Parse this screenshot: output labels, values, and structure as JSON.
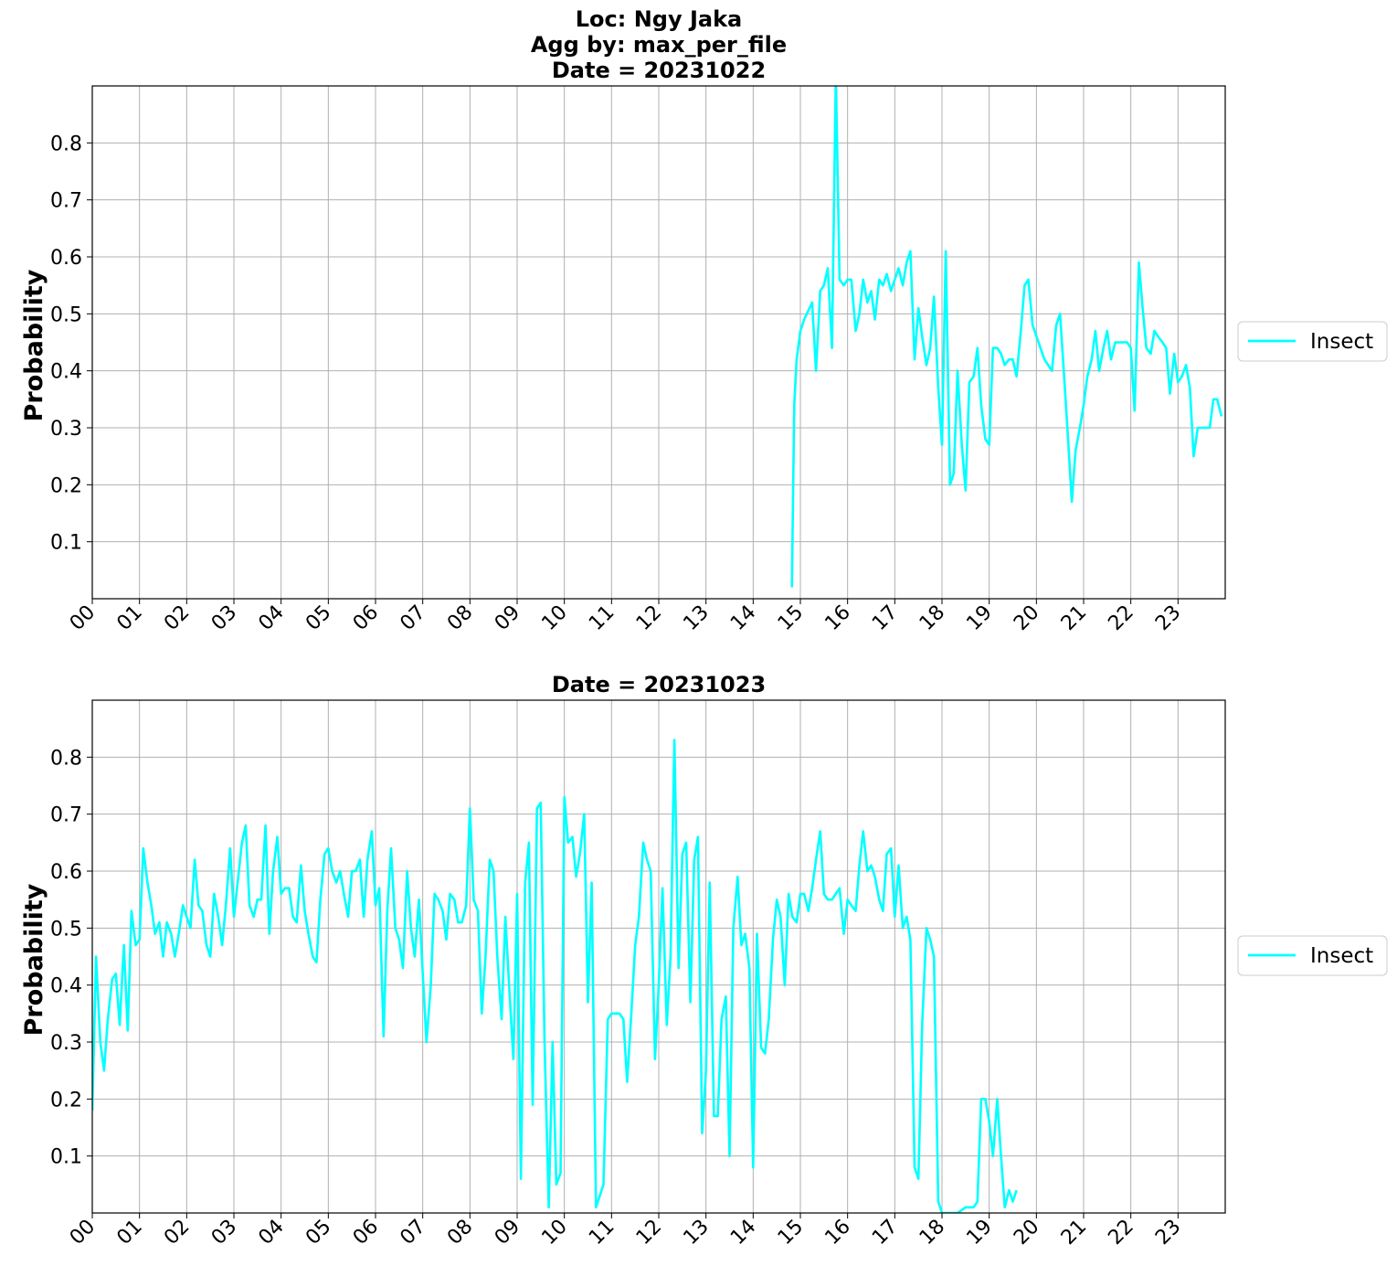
{
  "chart_data": [
    {
      "type": "line",
      "title_lines": [
        "Loc: Ngy Jaka",
        "Agg by: max_per_file",
        "Date = 20231022"
      ],
      "xlabel": "",
      "ylabel": "Probability",
      "x_ticks": [
        "00",
        "01",
        "02",
        "03",
        "04",
        "05",
        "06",
        "07",
        "08",
        "09",
        "10",
        "11",
        "12",
        "13",
        "14",
        "15",
        "16",
        "17",
        "18",
        "19",
        "20",
        "21",
        "22",
        "23"
      ],
      "y_ticks": [
        "0.1",
        "0.2",
        "0.3",
        "0.4",
        "0.5",
        "0.6",
        "0.7",
        "0.8"
      ],
      "xlim": [
        0,
        24
      ],
      "ylim": [
        0,
        0.9
      ],
      "grid": true,
      "legend_position": "right",
      "color": "#00ffff",
      "series": [
        {
          "name": "Insect",
          "x": [
            14.82,
            14.87,
            14.92,
            15.0,
            15.08,
            15.25,
            15.33,
            15.42,
            15.5,
            15.58,
            15.67,
            15.75,
            15.83,
            15.92,
            16.0,
            16.08,
            16.17,
            16.25,
            16.33,
            16.42,
            16.5,
            16.58,
            16.67,
            16.75,
            16.83,
            16.92,
            17.0,
            17.08,
            17.17,
            17.25,
            17.33,
            17.42,
            17.5,
            17.58,
            17.67,
            17.75,
            17.83,
            17.92,
            18.0,
            18.08,
            18.17,
            18.25,
            18.33,
            18.42,
            18.5,
            18.58,
            18.67,
            18.75,
            18.83,
            18.92,
            19.0,
            19.08,
            19.17,
            19.25,
            19.33,
            19.42,
            19.5,
            19.58,
            19.67,
            19.75,
            19.83,
            19.92,
            20.17,
            20.33,
            20.42,
            20.5,
            20.58,
            20.67,
            20.75,
            20.83,
            20.92,
            21.0,
            21.08,
            21.17,
            21.25,
            21.33,
            21.42,
            21.5,
            21.58,
            21.67,
            21.75,
            21.83,
            21.92,
            22.0,
            22.08,
            22.17,
            22.25,
            22.33,
            22.42,
            22.5,
            22.58,
            22.67,
            22.75,
            22.83,
            22.92,
            23.0,
            23.08,
            23.17,
            23.25,
            23.33,
            23.42,
            23.5,
            23.58,
            23.67,
            23.75,
            23.83,
            23.92
          ],
          "y": [
            0.02,
            0.34,
            0.42,
            0.47,
            0.49,
            0.52,
            0.4,
            0.54,
            0.55,
            0.58,
            0.44,
            0.92,
            0.56,
            0.55,
            0.56,
            0.56,
            0.47,
            0.5,
            0.56,
            0.52,
            0.54,
            0.49,
            0.56,
            0.55,
            0.57,
            0.54,
            0.56,
            0.58,
            0.55,
            0.59,
            0.61,
            0.42,
            0.51,
            0.46,
            0.41,
            0.44,
            0.53,
            0.37,
            0.27,
            0.61,
            0.2,
            0.22,
            0.4,
            0.27,
            0.19,
            0.38,
            0.39,
            0.44,
            0.34,
            0.28,
            0.27,
            0.44,
            0.44,
            0.43,
            0.41,
            0.42,
            0.42,
            0.39,
            0.47,
            0.55,
            0.56,
            0.48,
            0.42,
            0.4,
            0.48,
            0.5,
            0.4,
            0.28,
            0.17,
            0.26,
            0.3,
            0.34,
            0.39,
            0.42,
            0.47,
            0.4,
            0.44,
            0.47,
            0.42,
            0.45,
            0.45,
            0.45,
            0.45,
            0.44,
            0.33,
            0.59,
            0.51,
            0.44,
            0.43,
            0.47,
            0.46,
            0.45,
            0.44,
            0.36,
            0.43,
            0.38,
            0.39,
            0.41,
            0.37,
            0.25,
            0.3,
            0.3,
            0.3,
            0.3,
            0.35,
            0.35,
            0.32
          ]
        }
      ]
    },
    {
      "type": "line",
      "title_lines": [
        "Date = 20231023"
      ],
      "xlabel": "",
      "ylabel": "Probability",
      "x_ticks": [
        "00",
        "01",
        "02",
        "03",
        "04",
        "05",
        "06",
        "07",
        "08",
        "09",
        "10",
        "11",
        "12",
        "13",
        "14",
        "15",
        "16",
        "17",
        "18",
        "19",
        "20",
        "21",
        "22",
        "23"
      ],
      "y_ticks": [
        "0.1",
        "0.2",
        "0.3",
        "0.4",
        "0.5",
        "0.6",
        "0.7",
        "0.8"
      ],
      "xlim": [
        0,
        24
      ],
      "ylim": [
        0,
        0.9
      ],
      "grid": true,
      "legend_position": "right",
      "color": "#00ffff",
      "series": [
        {
          "name": "Insect",
          "x": [
            0.0,
            0.08,
            0.17,
            0.25,
            0.33,
            0.42,
            0.5,
            0.58,
            0.67,
            0.75,
            0.83,
            0.92,
            1.0,
            1.08,
            1.17,
            1.25,
            1.33,
            1.42,
            1.5,
            1.58,
            1.67,
            1.75,
            1.83,
            1.92,
            2.0,
            2.08,
            2.17,
            2.25,
            2.33,
            2.42,
            2.5,
            2.58,
            2.67,
            2.75,
            2.83,
            2.92,
            3.0,
            3.08,
            3.17,
            3.25,
            3.33,
            3.42,
            3.5,
            3.58,
            3.67,
            3.75,
            3.83,
            3.92,
            4.0,
            4.08,
            4.17,
            4.25,
            4.33,
            4.42,
            4.5,
            4.58,
            4.67,
            4.75,
            4.83,
            4.92,
            5.0,
            5.08,
            5.17,
            5.25,
            5.33,
            5.42,
            5.5,
            5.58,
            5.67,
            5.75,
            5.83,
            5.92,
            6.0,
            6.08,
            6.17,
            6.25,
            6.33,
            6.42,
            6.5,
            6.58,
            6.67,
            6.75,
            6.83,
            6.92,
            7.0,
            7.08,
            7.17,
            7.25,
            7.33,
            7.42,
            7.5,
            7.58,
            7.67,
            7.75,
            7.83,
            7.92,
            8.0,
            8.08,
            8.17,
            8.25,
            8.33,
            8.42,
            8.5,
            8.58,
            8.67,
            8.75,
            8.83,
            8.92,
            9.0,
            9.08,
            9.17,
            9.25,
            9.33,
            9.42,
            9.5,
            9.58,
            9.67,
            9.75,
            9.83,
            9.92,
            10.0,
            10.08,
            10.17,
            10.25,
            10.33,
            10.42,
            10.5,
            10.58,
            10.67,
            10.75,
            10.83,
            10.92,
            11.0,
            11.08,
            11.17,
            11.25,
            11.33,
            11.42,
            11.5,
            11.58,
            11.67,
            11.75,
            11.83,
            11.92,
            12.0,
            12.08,
            12.17,
            12.25,
            12.33,
            12.42,
            12.5,
            12.58,
            12.67,
            12.75,
            12.83,
            12.92,
            13.0,
            13.08,
            13.17,
            13.25,
            13.33,
            13.42,
            13.5,
            13.58,
            13.67,
            13.75,
            13.83,
            13.92,
            14.0,
            14.08,
            14.17,
            14.25,
            14.33,
            14.42,
            14.5,
            14.58,
            14.67,
            14.75,
            14.83,
            14.92,
            15.0,
            15.08,
            15.17,
            15.25,
            15.33,
            15.42,
            15.5,
            15.58,
            15.67,
            15.75,
            15.83,
            15.92,
            16.0,
            16.08,
            16.17,
            16.25,
            16.33,
            16.42,
            16.5,
            16.58,
            16.67,
            16.75,
            16.83,
            16.92,
            17.0,
            17.08,
            17.17,
            17.25,
            17.33,
            17.42,
            17.5,
            17.58,
            17.67,
            17.75,
            17.83,
            17.92,
            18.0,
            18.17,
            18.33,
            18.5,
            18.67,
            18.75,
            18.83,
            18.92,
            19.0,
            19.08,
            19.17,
            19.25,
            19.33,
            19.42,
            19.5,
            19.58
          ],
          "y": [
            0.18,
            0.45,
            0.3,
            0.25,
            0.34,
            0.41,
            0.42,
            0.33,
            0.47,
            0.32,
            0.53,
            0.47,
            0.48,
            0.64,
            0.58,
            0.54,
            0.49,
            0.51,
            0.45,
            0.51,
            0.49,
            0.45,
            0.49,
            0.54,
            0.52,
            0.5,
            0.62,
            0.54,
            0.53,
            0.47,
            0.45,
            0.56,
            0.52,
            0.47,
            0.54,
            0.64,
            0.52,
            0.58,
            0.65,
            0.68,
            0.54,
            0.52,
            0.55,
            0.55,
            0.68,
            0.49,
            0.6,
            0.66,
            0.56,
            0.57,
            0.57,
            0.52,
            0.51,
            0.61,
            0.53,
            0.49,
            0.45,
            0.44,
            0.55,
            0.63,
            0.64,
            0.6,
            0.58,
            0.6,
            0.56,
            0.52,
            0.6,
            0.6,
            0.62,
            0.52,
            0.62,
            0.67,
            0.54,
            0.57,
            0.31,
            0.53,
            0.64,
            0.5,
            0.48,
            0.43,
            0.6,
            0.5,
            0.45,
            0.55,
            0.42,
            0.3,
            0.4,
            0.56,
            0.55,
            0.53,
            0.48,
            0.56,
            0.55,
            0.51,
            0.51,
            0.54,
            0.71,
            0.55,
            0.53,
            0.35,
            0.45,
            0.62,
            0.6,
            0.45,
            0.34,
            0.52,
            0.4,
            0.27,
            0.56,
            0.06,
            0.58,
            0.65,
            0.19,
            0.71,
            0.72,
            0.3,
            0.01,
            0.3,
            0.05,
            0.07,
            0.73,
            0.65,
            0.66,
            0.59,
            0.63,
            0.7,
            0.37,
            0.58,
            0.01,
            0.03,
            0.05,
            0.34,
            0.35,
            0.35,
            0.35,
            0.34,
            0.23,
            0.35,
            0.47,
            0.52,
            0.65,
            0.62,
            0.6,
            0.27,
            0.4,
            0.57,
            0.33,
            0.45,
            0.83,
            0.43,
            0.63,
            0.65,
            0.37,
            0.62,
            0.66,
            0.14,
            0.25,
            0.58,
            0.17,
            0.17,
            0.34,
            0.38,
            0.1,
            0.5,
            0.59,
            0.47,
            0.49,
            0.43,
            0.08,
            0.49,
            0.29,
            0.28,
            0.34,
            0.48,
            0.55,
            0.52,
            0.4,
            0.56,
            0.52,
            0.51,
            0.56,
            0.56,
            0.53,
            0.57,
            0.62,
            0.67,
            0.56,
            0.55,
            0.55,
            0.56,
            0.57,
            0.49,
            0.55,
            0.54,
            0.53,
            0.61,
            0.67,
            0.6,
            0.61,
            0.59,
            0.55,
            0.53,
            0.63,
            0.64,
            0.52,
            0.61,
            0.5,
            0.52,
            0.48,
            0.08,
            0.06,
            0.33,
            0.5,
            0.48,
            0.45,
            0.02,
            0.0,
            0.0,
            0.0,
            0.01,
            0.01,
            0.02,
            0.2,
            0.2,
            0.16,
            0.1,
            0.2,
            0.1,
            0.01,
            0.04,
            0.02,
            0.04
          ]
        }
      ]
    }
  ]
}
